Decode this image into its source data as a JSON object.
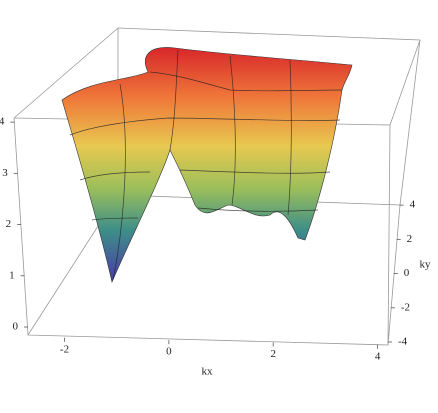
{
  "chart_data": {
    "type": "surface3d",
    "xlabel": "kx",
    "ylabel": "ky",
    "xlim": [
      -2.7,
      4.2
    ],
    "xticks": [
      -2,
      0,
      2,
      4
    ],
    "ylim": [
      -4,
      4.3
    ],
    "yticks": [
      -4,
      -2,
      0,
      2,
      4
    ],
    "zlim": [
      0,
      4.1
    ],
    "zticks": [
      0,
      1,
      2,
      3,
      4
    ]
  }
}
